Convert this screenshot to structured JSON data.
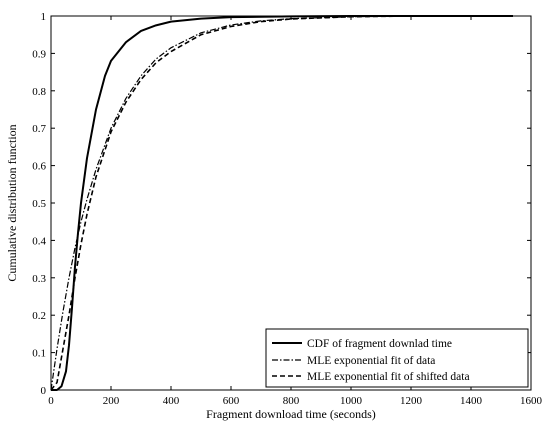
{
  "chart_data": {
    "type": "line",
    "title": "",
    "xlabel": "Fragment download time (seconds)",
    "ylabel": "Cumulative distribution function",
    "xlim": [
      0,
      1600
    ],
    "ylim": [
      0,
      1
    ],
    "xticks": [
      0,
      200,
      400,
      600,
      800,
      1000,
      1200,
      1400,
      1600
    ],
    "yticks": [
      0,
      0.1,
      0.2,
      0.3,
      0.4,
      0.5,
      0.6,
      0.7,
      0.8,
      0.9,
      1
    ],
    "legend_position": "bottom-right",
    "grid": false,
    "series": [
      {
        "name": "CDF of fragment downlad time",
        "style": "solid",
        "x": [
          0,
          20,
          35,
          50,
          60,
          70,
          80,
          90,
          100,
          120,
          150,
          180,
          200,
          250,
          300,
          350,
          400,
          500,
          600,
          800,
          1000,
          1200,
          1400,
          1540
        ],
        "y": [
          0,
          0,
          0.01,
          0.05,
          0.12,
          0.22,
          0.33,
          0.42,
          0.5,
          0.62,
          0.75,
          0.84,
          0.88,
          0.93,
          0.96,
          0.975,
          0.985,
          0.993,
          0.997,
          0.999,
          1,
          1,
          1,
          1
        ]
      },
      {
        "name": "MLE exponential fit of data",
        "style": "dash-dot",
        "x": [
          0,
          20,
          40,
          60,
          80,
          100,
          120,
          150,
          200,
          250,
          300,
          350,
          400,
          500,
          600,
          700,
          800,
          1000,
          1200,
          1400,
          1540
        ],
        "y": [
          0,
          0.11,
          0.21,
          0.3,
          0.38,
          0.45,
          0.51,
          0.59,
          0.7,
          0.78,
          0.84,
          0.885,
          0.915,
          0.955,
          0.976,
          0.987,
          0.993,
          0.998,
          1,
          1,
          1
        ]
      },
      {
        "name": "MLE exponential fit of shifted data",
        "style": "dashed",
        "x": [
          0,
          20,
          40,
          60,
          80,
          100,
          120,
          150,
          200,
          250,
          300,
          350,
          400,
          500,
          600,
          700,
          800,
          1000,
          1200,
          1400,
          1540
        ],
        "y": [
          0,
          0.02,
          0.11,
          0.2,
          0.3,
          0.39,
          0.47,
          0.57,
          0.69,
          0.77,
          0.83,
          0.875,
          0.905,
          0.95,
          0.972,
          0.985,
          0.992,
          0.998,
          1,
          1,
          1
        ]
      }
    ]
  }
}
